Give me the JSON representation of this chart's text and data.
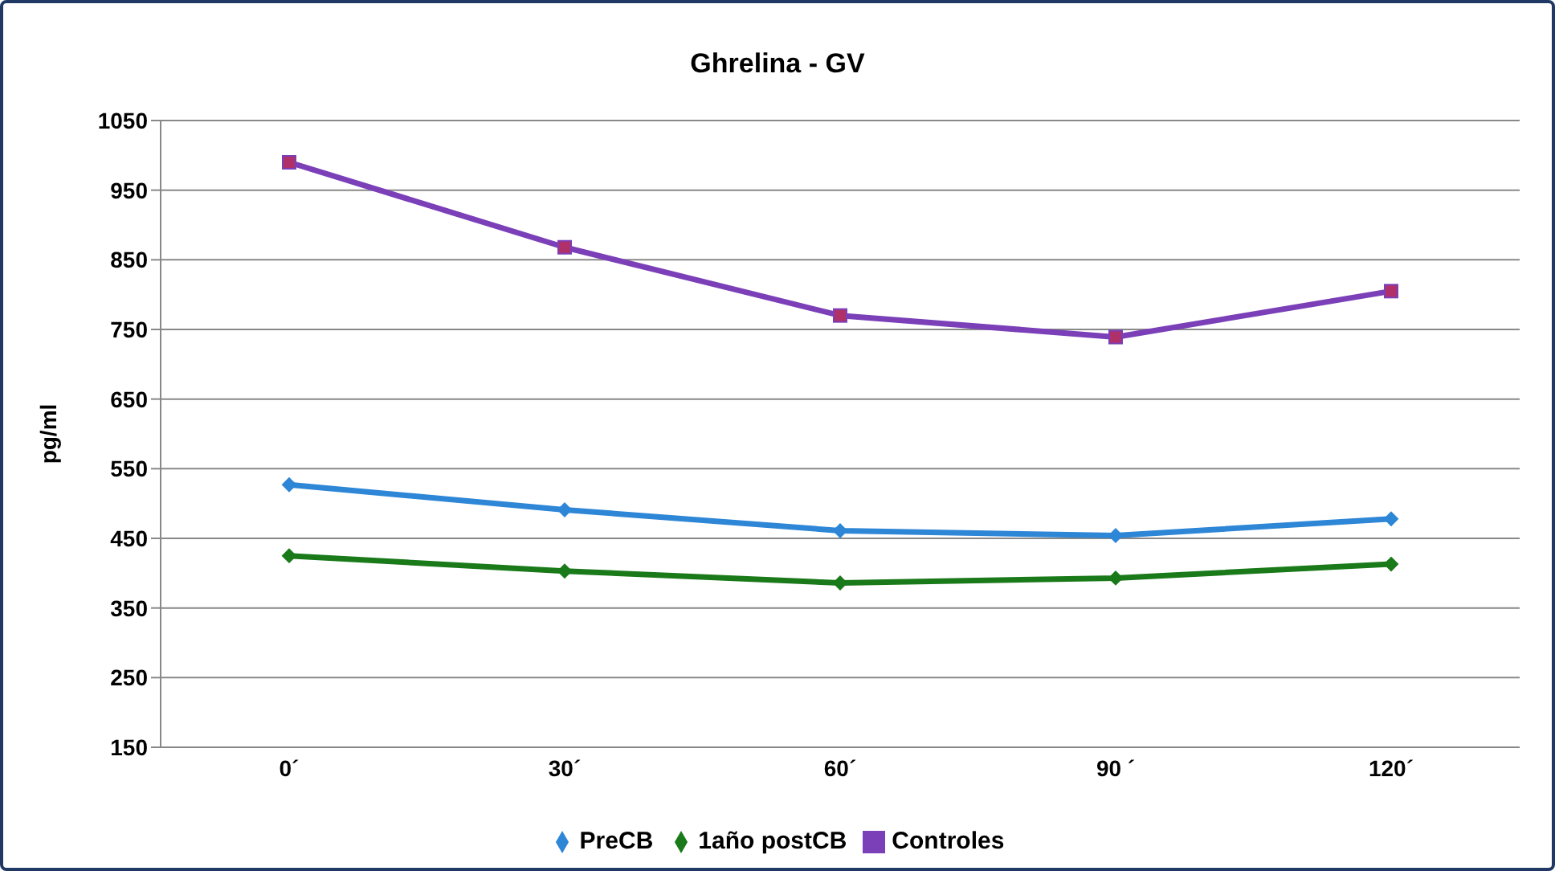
{
  "chart_data": {
    "type": "line",
    "title": "Ghrelina - GV",
    "ylabel": "pg/ml",
    "categories": [
      "0´",
      "30´",
      "60´",
      "90 ´",
      "120´"
    ],
    "series": [
      {
        "name": "PreCB",
        "color": "#2e86d6",
        "marker": "diamond",
        "values": [
          527,
          491,
          461,
          454,
          478
        ]
      },
      {
        "name": "1año postCB",
        "color": "#1a7a1a",
        "marker": "diamond",
        "values": [
          425,
          403,
          386,
          393,
          413
        ]
      },
      {
        "name": "Controles",
        "color": "#7b3fb8",
        "marker": "square",
        "values": [
          990,
          868,
          770,
          739,
          805
        ]
      }
    ],
    "ylim": [
      150,
      1050
    ],
    "yticks": [
      150,
      250,
      350,
      450,
      550,
      650,
      750,
      850,
      950,
      1050
    ],
    "grid": "y",
    "legend": "bottom"
  }
}
